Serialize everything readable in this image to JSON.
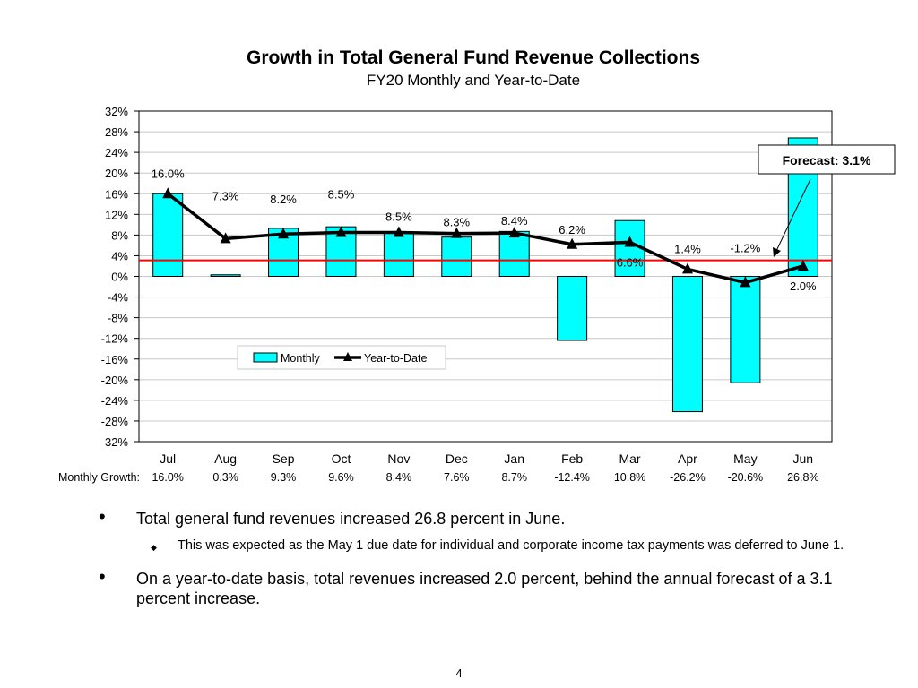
{
  "slide": {
    "title": "Growth in Total General Fund Revenue Collections",
    "subtitle": "FY20 Monthly and Year-to-Date",
    "page_number": "4"
  },
  "chart_data": {
    "type": "bar",
    "categories": [
      "Jul",
      "Aug",
      "Sep",
      "Oct",
      "Nov",
      "Dec",
      "Jan",
      "Feb",
      "Mar",
      "Apr",
      "May",
      "Jun"
    ],
    "series": [
      {
        "name": "Monthly",
        "type": "bar",
        "color": "#00ffff",
        "values": [
          16.0,
          0.3,
          9.3,
          9.6,
          8.4,
          7.6,
          8.7,
          -12.4,
          10.8,
          -26.2,
          -20.6,
          26.8
        ]
      },
      {
        "name": "Year-to-Date",
        "type": "line",
        "color": "#000000",
        "values": [
          16.0,
          7.3,
          8.2,
          8.5,
          8.5,
          8.3,
          8.4,
          6.2,
          6.6,
          1.4,
          -1.2,
          2.0
        ],
        "labels": [
          "16.0%",
          "7.3%",
          "8.2%",
          "8.5%",
          "8.5%",
          "8.3%",
          "8.4%",
          "6.2%",
          "6.6%",
          "1.4%",
          "-1.2%",
          "2.0%"
        ]
      }
    ],
    "yticks": [
      "32%",
      "28%",
      "24%",
      "20%",
      "16%",
      "12%",
      "8%",
      "4%",
      "0%",
      "-4%",
      "-8%",
      "-12%",
      "-16%",
      "-20%",
      "-24%",
      "-28%",
      "-32%"
    ],
    "ylim": [
      -32,
      32
    ],
    "forecast": {
      "value": 3.1,
      "label": "Forecast: 3.1%",
      "color": "#ff0000"
    },
    "monthly_growth_label": "Monthly Growth:",
    "monthly_growth": [
      "16.0%",
      "0.3%",
      "9.3%",
      "9.6%",
      "8.4%",
      "7.6%",
      "8.7%",
      "-12.4%",
      "10.8%",
      "-26.2%",
      "-20.6%",
      "26.8%"
    ],
    "legend": [
      "Monthly",
      "Year-to-Date"
    ]
  },
  "bullets": [
    {
      "level": 1,
      "text": "Total general fund revenues increased 26.8 percent in June."
    },
    {
      "level": 2,
      "text": "This was expected as the May 1 due date for individual and corporate income tax payments was deferred to June 1."
    },
    {
      "level": 1,
      "text": "On a year-to-date basis, total revenues increased 2.0 percent, behind the annual forecast of a 3.1 percent increase."
    }
  ]
}
